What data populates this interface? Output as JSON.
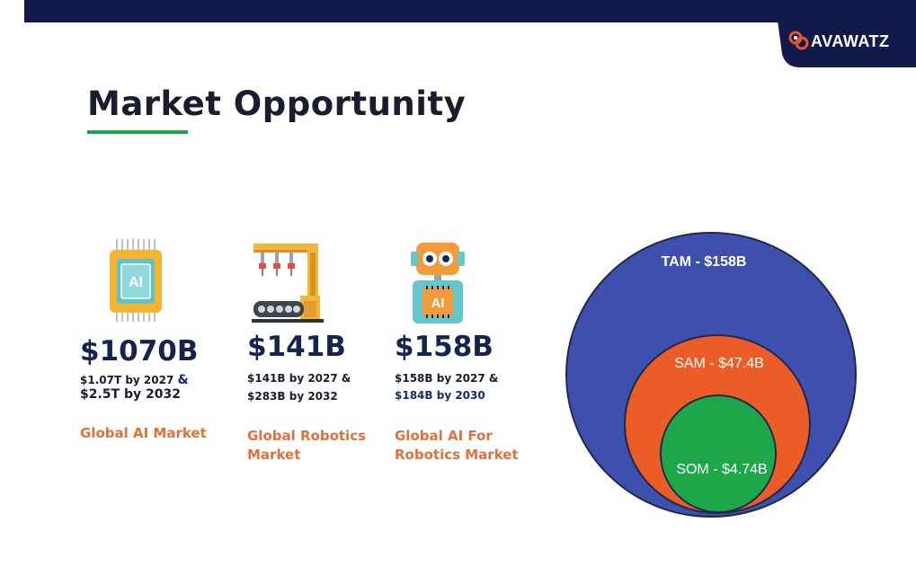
{
  "brand": {
    "name": "AVAWATZ",
    "colors": {
      "navy": "#121a4a",
      "accent_orange": "#e9532b",
      "green": "#1aa34a"
    }
  },
  "slide": {
    "title": "Market Opportunity"
  },
  "cards": [
    {
      "icon": "ai-chip-icon",
      "value": "$1070B",
      "detail_line1_a": "$1.07T by 2027",
      "detail_line1_b": "&",
      "detail_line2": "$2.5T by 2032",
      "label_line1": "Global AI Market",
      "label_line2": ""
    },
    {
      "icon": "robotic-assembly-line-icon",
      "value": "$141B",
      "detail_line1_a": "$141B by 2027 &",
      "detail_line1_b": "",
      "detail_line2": "$283B by 2032",
      "label_line1": "Global Robotics",
      "label_line2": "Market"
    },
    {
      "icon": "ai-robot-icon",
      "value": "$158B",
      "detail_line1_a": "$158B by 2027 &",
      "detail_line1_b": "",
      "detail_line2": "$184B by 2030",
      "label_line1": "Global AI For",
      "label_line2": "Robotics Market"
    }
  ],
  "market_sizing": {
    "tam": {
      "label": "TAM - $158B",
      "color": "#3e4fad"
    },
    "sam": {
      "label": "SAM - $47.4B",
      "color": "#ec5c27"
    },
    "som": {
      "label": "SOM - $4.74B",
      "color": "#1ea64b"
    }
  }
}
